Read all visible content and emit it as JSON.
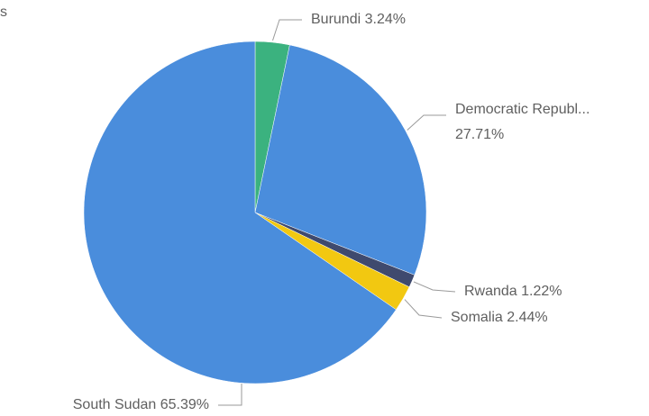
{
  "chart_data": {
    "type": "pie",
    "title": "s",
    "categories": [
      "Burundi",
      "Democratic Republ...",
      "Rwanda",
      "Somalia",
      "South Sudan"
    ],
    "values": [
      3.24,
      27.71,
      1.22,
      2.44,
      65.39
    ],
    "value_labels": [
      "3.24%",
      "27.71%",
      "1.22%",
      "2.44%",
      "65.39%"
    ],
    "colors": [
      "#3bb27f",
      "#4a8ddc",
      "#3f4a6e",
      "#f2c811",
      "#4a8ddc"
    ]
  }
}
